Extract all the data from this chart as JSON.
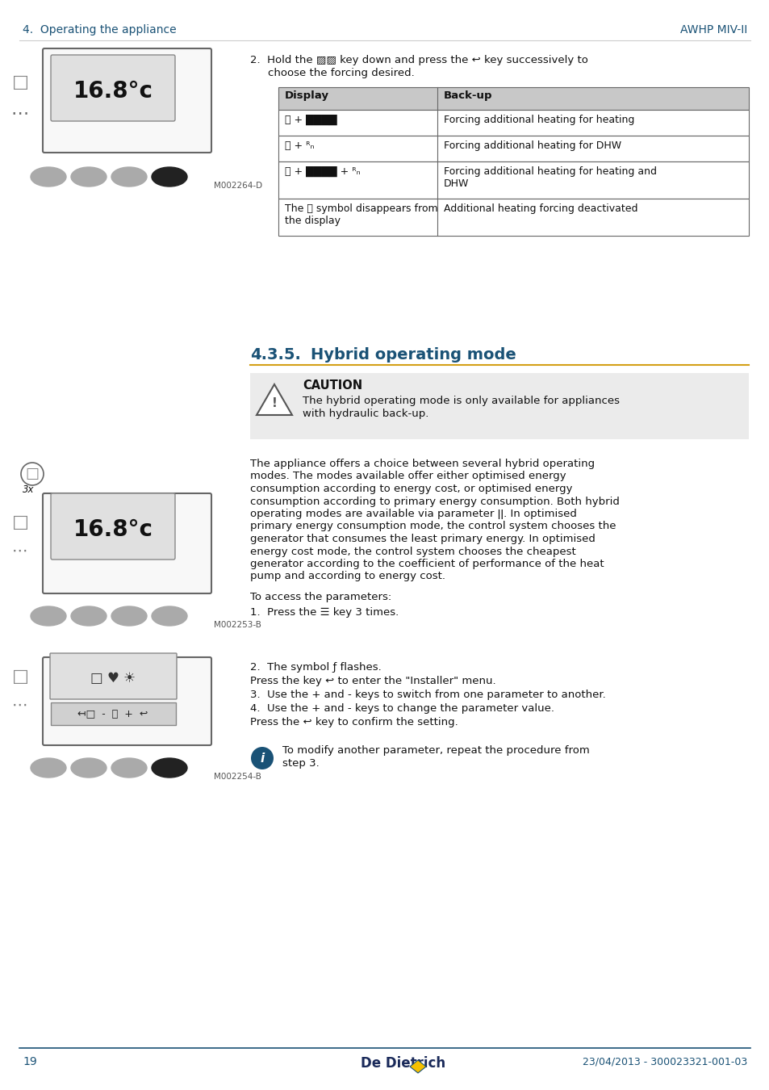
{
  "page_bg": "#ffffff",
  "header_left": "4.  Operating the appliance",
  "header_right": "AWHP MIV-II",
  "header_color": "#1a5276",
  "footer_page": "19",
  "footer_brand": "De Dietrich",
  "footer_date": "23/04/2013 - 300023321-001-03",
  "footer_color": "#1a5276",
  "section_num": "4.3.5.",
  "section_title": "Hybrid operating mode",
  "section_color": "#1a5276",
  "section_underline_color": "#d4a017",
  "table_header_bg": "#c8c8c8",
  "table_col1_header": "Display",
  "table_col2_header": "Back-up",
  "table_row1_c1": "⛶ + ████",
  "table_row1_c2": "Forcing additional heating for heating",
  "table_row2_c1": "⛶ + ᴿₙ",
  "table_row2_c2": "Forcing additional heating for DHW",
  "table_row3_c1": "⛶ + ████ + ᴿₙ",
  "table_row3_c2a": "Forcing additional heating for heating and",
  "table_row3_c2b": "DHW",
  "table_row4_c1a": "The ⛶ symbol disappears from",
  "table_row4_c1b": "the display",
  "table_row4_c2": "Additional heating forcing deactivated",
  "step2_line1": "2.  Hold the ▨▨ key down and press the ↩ key successively to",
  "step2_line2": "choose the forcing desired.",
  "caution_title": "CAUTION",
  "caution_line1": "The hybrid operating mode is only available for appliances",
  "caution_line2": "with hydraulic back-up.",
  "body_line1": "The appliance offers a choice between several hybrid operating",
  "body_line2": "modes. The modes available offer either optimised energy",
  "body_line3": "consumption according to energy cost, or optimised energy",
  "body_line4": "consumption according to primary energy consumption. Both hybrid",
  "body_line5": "operating modes are available via parameter ǀǀ. In optimised",
  "body_line6": "primary energy consumption mode, the control system chooses the",
  "body_line7": "generator that consumes the least primary energy. In optimised",
  "body_line8": "energy cost mode, the control system chooses the cheapest",
  "body_line9": "generator according to the coefficient of performance of the heat",
  "body_line10": "pump and according to energy cost.",
  "access_text": "To access the parameters:",
  "step1_text": "1.  Press the ☰ key 3 times.",
  "step2b_line1": "2.  The symbol ƒ flashes.",
  "step2b_line2": "Press the key ↩ to enter the \"Installer\" menu.",
  "step3_text": "3.  Use the + and - keys to switch from one parameter to another.",
  "step4_line1": "4.  Use the + and - keys to change the parameter value.",
  "step4_line2": "Press the ↩ key to confirm the setting.",
  "info_line1": "To modify another parameter, repeat the procedure from",
  "info_line2": "step 3.",
  "m002264": "M002264-D",
  "m002253": "M002253-B",
  "m002254": "M002254-B",
  "screen_text": "16.8°c",
  "btn_gray": "#aaaaaa",
  "btn_dark": "#222222",
  "dev_edge": "#666666",
  "dev_face": "#f8f8f8",
  "screen_face": "#e0e0e0"
}
